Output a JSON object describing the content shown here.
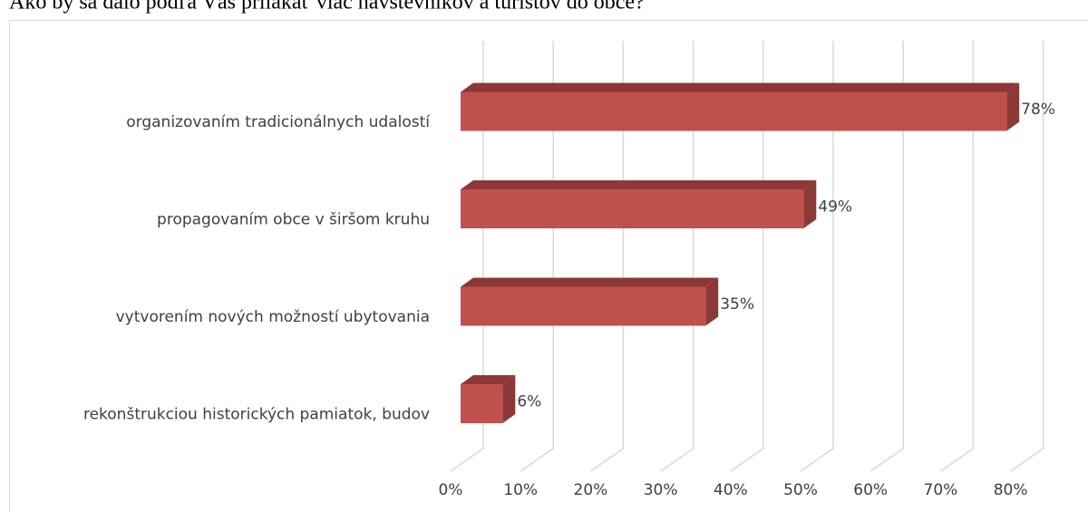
{
  "chart_data": {
    "type": "bar3d",
    "orientation": "horizontal",
    "title": "Ako by sa dalo podľa Vás prilákať viac návštevníkov a turistov do obce?",
    "categories": [
      "organizovaním tradicionálnych udalostí",
      "propagovaním obce v širšom kruhu",
      "vytvorením nových možností ubytovania",
      "rekonštrukciou historických pamiatok, budov"
    ],
    "values": [
      78,
      49,
      35,
      6
    ],
    "value_labels": [
      "78%",
      "49%",
      "35%",
      "6%"
    ],
    "color": "#c0504d",
    "side_color": "#8c3836",
    "xlim": [
      0,
      80
    ],
    "xticks": [
      {
        "value": 0,
        "label": "0%"
      },
      {
        "value": 10,
        "label": "10%"
      },
      {
        "value": 20,
        "label": "20%"
      },
      {
        "value": 30,
        "label": "30%"
      },
      {
        "value": 40,
        "label": "40%"
      },
      {
        "value": 50,
        "label": "50%"
      },
      {
        "value": 60,
        "label": "60%"
      },
      {
        "value": 70,
        "label": "70%"
      },
      {
        "value": 80,
        "label": "80%"
      }
    ],
    "grid": true
  }
}
